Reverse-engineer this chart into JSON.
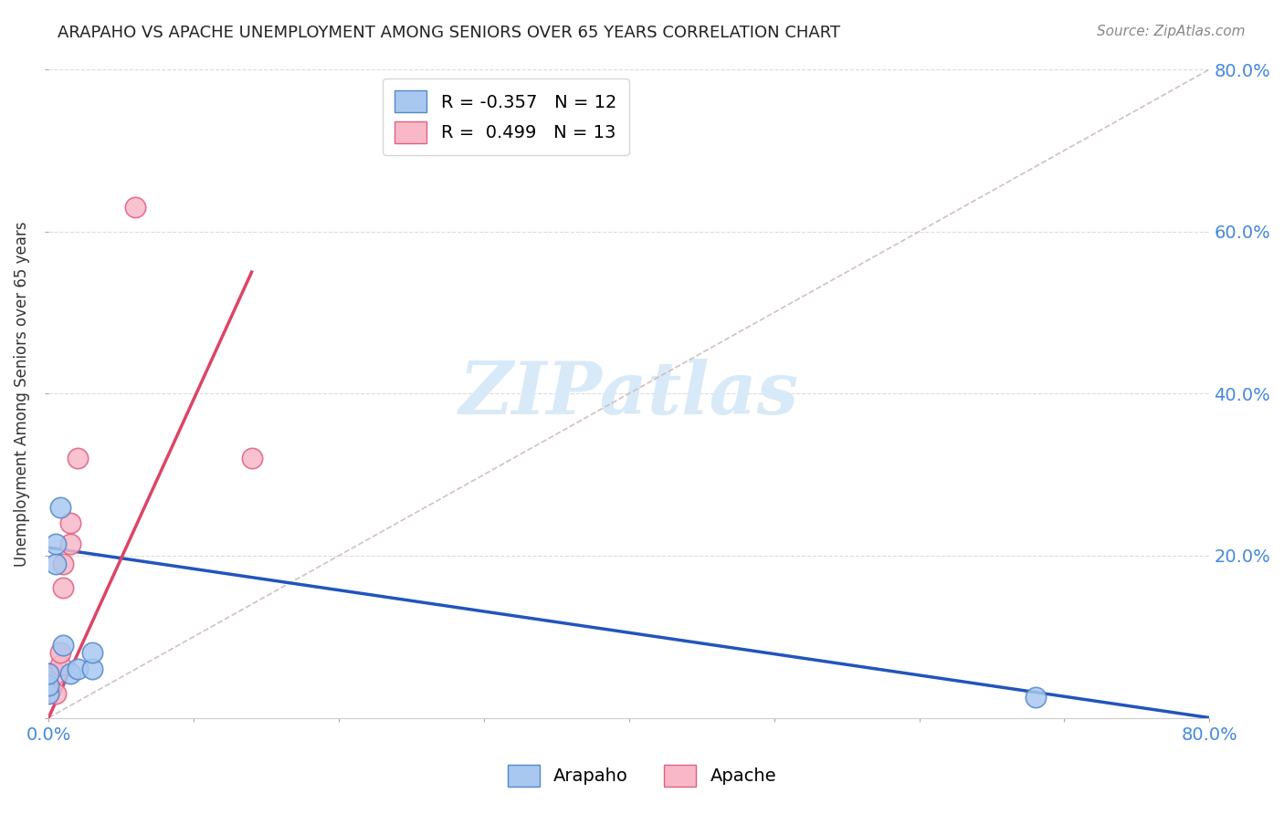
{
  "title": "ARAPAHO VS APACHE UNEMPLOYMENT AMONG SENIORS OVER 65 YEARS CORRELATION CHART",
  "source": "Source: ZipAtlas.com",
  "ylabel": "Unemployment Among Seniors over 65 years",
  "xlim": [
    0.0,
    0.8
  ],
  "ylim": [
    0.0,
    0.8
  ],
  "grid_color": "#cccccc",
  "background_color": "#ffffff",
  "arapaho_color": "#a8c8f0",
  "apache_color": "#f8b8c8",
  "arapaho_edge": "#5588cc",
  "apache_edge": "#e06080",
  "trend_arapaho_color": "#2255bb",
  "trend_apache_color": "#dd4466",
  "trend_dashed_color": "#ccbbbb",
  "watermark_color": "#d8eaf8",
  "legend_R_arapaho": "-0.357",
  "legend_N_arapaho": "12",
  "legend_R_apache": "0.499",
  "legend_N_apache": "13",
  "arapaho_x": [
    0.0,
    0.0,
    0.0,
    0.005,
    0.005,
    0.008,
    0.01,
    0.015,
    0.02,
    0.03,
    0.03,
    0.68
  ],
  "arapaho_y": [
    0.03,
    0.04,
    0.055,
    0.19,
    0.215,
    0.26,
    0.09,
    0.055,
    0.06,
    0.06,
    0.08,
    0.025
  ],
  "apache_x": [
    0.0,
    0.0,
    0.005,
    0.005,
    0.008,
    0.008,
    0.01,
    0.01,
    0.015,
    0.015,
    0.02,
    0.06,
    0.14
  ],
  "apache_y": [
    0.04,
    0.055,
    0.03,
    0.055,
    0.065,
    0.08,
    0.16,
    0.19,
    0.215,
    0.24,
    0.32,
    0.63,
    0.32
  ],
  "trend_arapaho_x0": 0.0,
  "trend_arapaho_y0": 0.21,
  "trend_arapaho_x1": 0.8,
  "trend_arapaho_y1": 0.0,
  "trend_apache_x0": 0.0,
  "trend_apache_y0": 0.0,
  "trend_apache_x1": 0.14,
  "trend_apache_y1": 0.55
}
